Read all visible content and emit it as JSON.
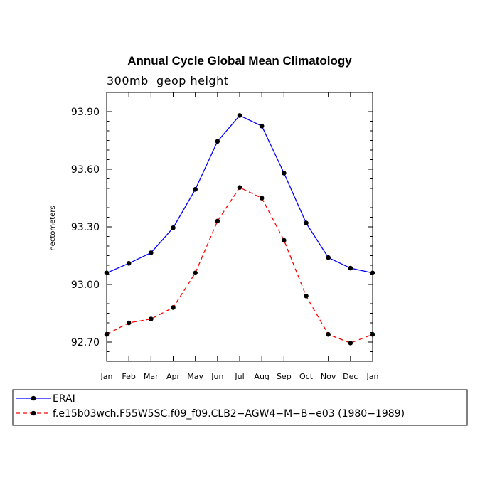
{
  "chart_data": {
    "type": "line",
    "title": "Annual Cycle Global Mean Climatology",
    "subtitle": "300mb  geop height",
    "ylabel": "hectometers",
    "xlabel": "",
    "categories": [
      "Jan",
      "Feb",
      "Mar",
      "Apr",
      "May",
      "Jun",
      "Jul",
      "Aug",
      "Sep",
      "Oct",
      "Nov",
      "Dec",
      "Jan"
    ],
    "ylim": [
      92.6,
      94.0
    ],
    "yticks": [
      92.7,
      93.0,
      93.3,
      93.6,
      93.9
    ],
    "ytick_labels": [
      "92.70",
      "93.00",
      "93.30",
      "93.60",
      "93.90"
    ],
    "series": [
      {
        "name": "ERAI",
        "color": "#0000ff",
        "dash": "solid",
        "values": [
          93.06,
          93.11,
          93.165,
          93.295,
          93.495,
          93.745,
          93.88,
          93.825,
          93.58,
          93.32,
          93.14,
          93.085,
          93.06
        ]
      },
      {
        "name": "f.e15b03wch.F55W5SC.f09_f09.CLB2−AGW4−M−B−e03 (1980−1989)",
        "color": "#ff0000",
        "dash": "dashed",
        "values": [
          92.74,
          92.8,
          92.82,
          92.88,
          93.06,
          93.33,
          93.505,
          93.45,
          93.23,
          92.94,
          92.74,
          92.695,
          92.74
        ]
      }
    ],
    "legend": "bottom"
  }
}
